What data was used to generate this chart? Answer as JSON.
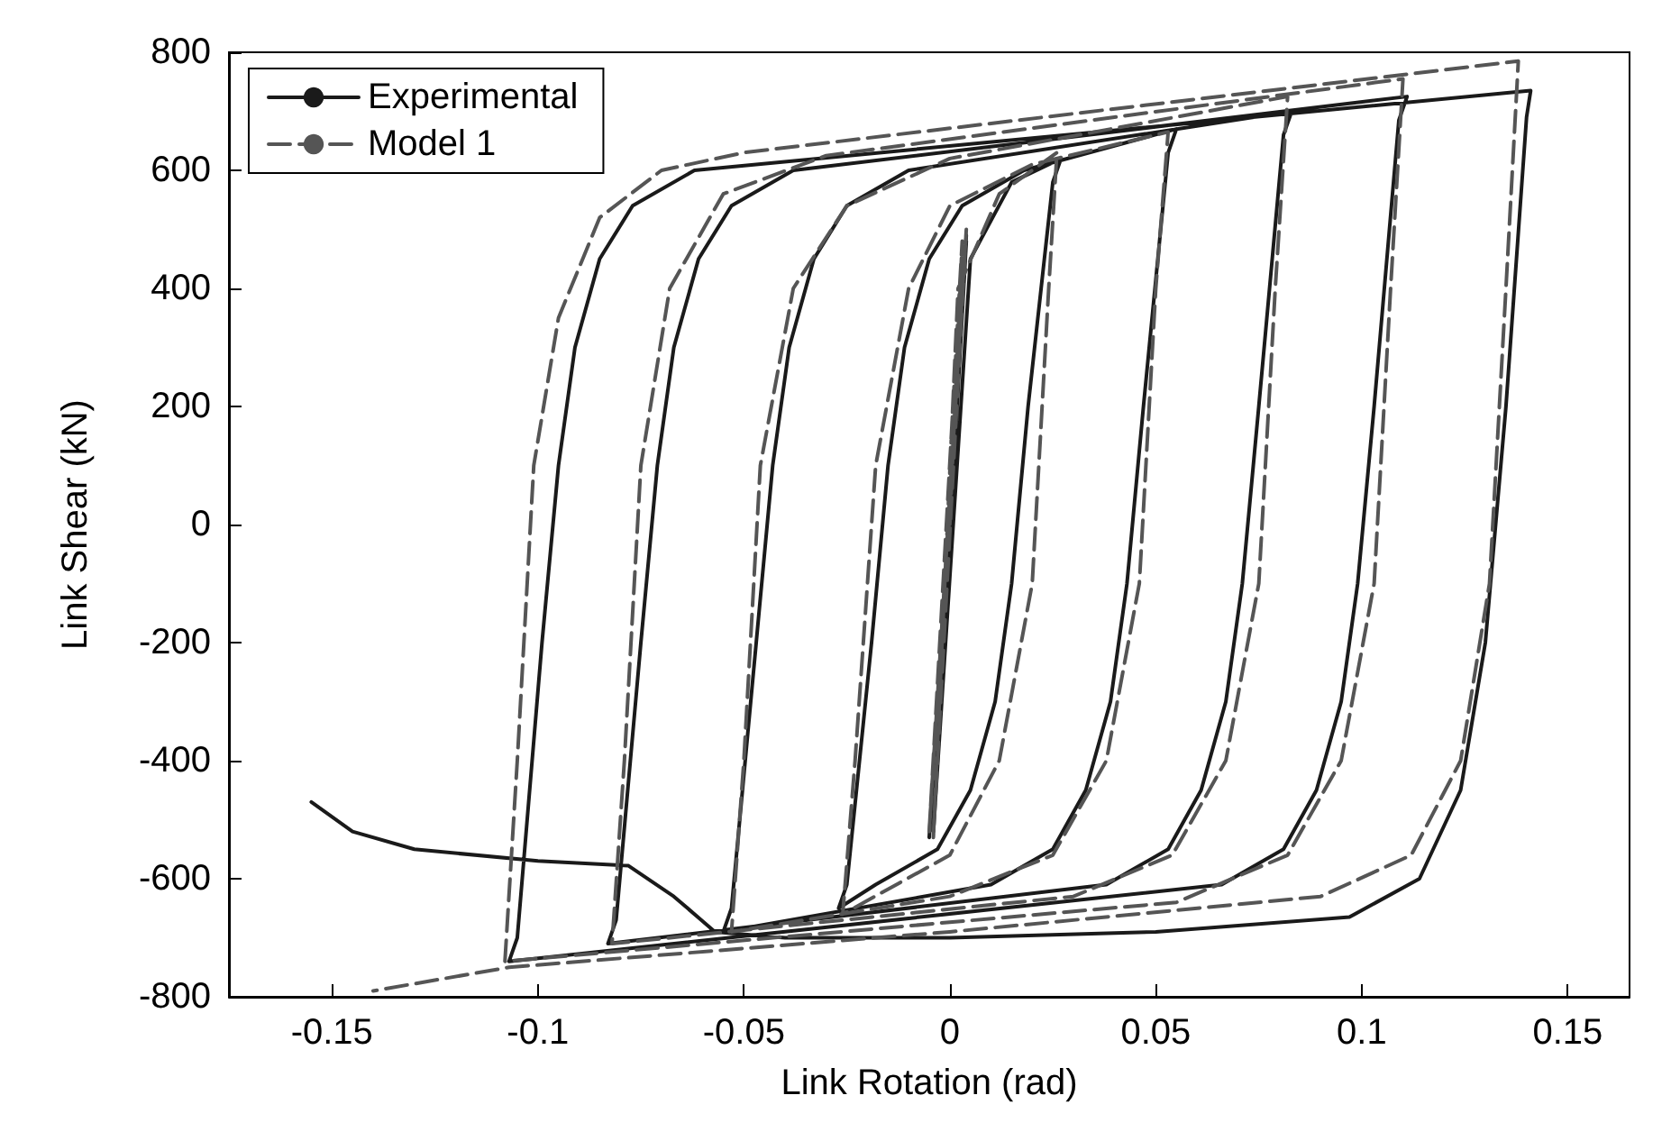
{
  "chart_data": {
    "type": "line",
    "xlabel": "Link Rotation (rad)",
    "ylabel": "Link Shear (kN)",
    "xlim": [
      -0.175,
      0.165
    ],
    "xticks": [
      -0.15,
      -0.1,
      -0.05,
      0,
      0.05,
      0.1,
      0.15
    ],
    "ylim": [
      -800,
      800
    ],
    "yticks": [
      -800,
      -600,
      -400,
      -200,
      0,
      200,
      400,
      600,
      800
    ],
    "grid": false,
    "legend": "top left",
    "marker": "none",
    "series": [
      {
        "name": "Experimental",
        "color": "#1a1a1a",
        "line_style": "solid",
        "x": [
          0,
          0.004,
          -0.005,
          0.004,
          -0.004,
          0.005,
          0.015,
          0.027,
          0.025,
          0.019,
          0.015,
          0.011,
          0.005,
          -0.003,
          -0.018,
          -0.027,
          -0.025,
          -0.019,
          -0.015,
          -0.011,
          -0.005,
          0.003,
          0.018,
          0.055,
          0.053,
          0.047,
          0.043,
          0.039,
          0.033,
          0.025,
          0.01,
          -0.055,
          -0.053,
          -0.047,
          -0.043,
          -0.039,
          -0.033,
          -0.025,
          -0.01,
          0.083,
          0.081,
          0.075,
          0.071,
          0.067,
          0.061,
          0.053,
          0.038,
          -0.083,
          -0.081,
          -0.075,
          -0.071,
          -0.067,
          -0.061,
          -0.053,
          -0.038,
          0.111,
          0.109,
          0.103,
          0.099,
          0.095,
          0.089,
          0.081,
          0.066,
          -0.107,
          -0.105,
          -0.099,
          -0.095,
          -0.091,
          -0.085,
          -0.077,
          -0.062,
          0.141,
          0.14,
          0.135,
          0.13,
          0.124,
          0.114,
          0.097,
          0.05,
          0,
          -0.04,
          -0.057,
          -0.067,
          -0.078,
          -0.1,
          -0.13,
          -0.145,
          -0.155
        ],
        "values": [
          0,
          490,
          -530,
          480,
          -520,
          450,
          580,
          620,
          580,
          200,
          -100,
          -300,
          -450,
          -550,
          -610,
          -650,
          -610,
          -200,
          100,
          300,
          450,
          540,
          600,
          670,
          630,
          200,
          -100,
          -300,
          -450,
          -550,
          -610,
          -690,
          -650,
          -200,
          100,
          300,
          450,
          540,
          600,
          700,
          660,
          200,
          -100,
          -300,
          -450,
          -550,
          -610,
          -710,
          -670,
          -200,
          100,
          300,
          450,
          540,
          600,
          725,
          685,
          200,
          -100,
          -300,
          -450,
          -550,
          -610,
          -740,
          -700,
          -200,
          100,
          300,
          450,
          540,
          600,
          735,
          690,
          200,
          -200,
          -450,
          -600,
          -665,
          -690,
          -700,
          -700,
          -690,
          -630,
          -578,
          -570,
          -550,
          -520,
          -470
        ]
      },
      {
        "name": "Model 1",
        "color": "#555555",
        "line_style": "dashed",
        "x": [
          0,
          0.003,
          -0.005,
          0.004,
          -0.004,
          0.002,
          0.012,
          0.026,
          0.024,
          0.02,
          0.012,
          0,
          -0.026,
          -0.023,
          -0.018,
          -0.01,
          0,
          0.02,
          0.053,
          0.05,
          0.046,
          0.038,
          0.025,
          0,
          -0.053,
          -0.05,
          -0.046,
          -0.038,
          -0.025,
          0,
          0.082,
          0.079,
          0.075,
          0.067,
          0.054,
          0.03,
          -0.082,
          -0.079,
          -0.075,
          -0.068,
          -0.055,
          -0.03,
          0.11,
          0.107,
          0.103,
          0.095,
          0.082,
          0.055,
          -0.108,
          -0.105,
          -0.101,
          -0.095,
          -0.085,
          -0.07,
          -0.05,
          0.138,
          0.135,
          0.131,
          0.124,
          0.112,
          0.09,
          0,
          -0.107,
          -0.14
        ],
        "values": [
          0,
          480,
          -520,
          500,
          -530,
          400,
          560,
          630,
          400,
          -100,
          -400,
          -560,
          -660,
          -400,
          100,
          400,
          540,
          610,
          665,
          400,
          -100,
          -400,
          -560,
          -630,
          -690,
          -400,
          100,
          400,
          540,
          620,
          725,
          400,
          -100,
          -400,
          -560,
          -630,
          -710,
          -400,
          100,
          400,
          560,
          625,
          755,
          400,
          -100,
          -400,
          -560,
          -640,
          -740,
          -400,
          100,
          350,
          520,
          600,
          630,
          785,
          400,
          -100,
          -400,
          -560,
          -630,
          -690,
          -750,
          -790
        ]
      }
    ]
  }
}
